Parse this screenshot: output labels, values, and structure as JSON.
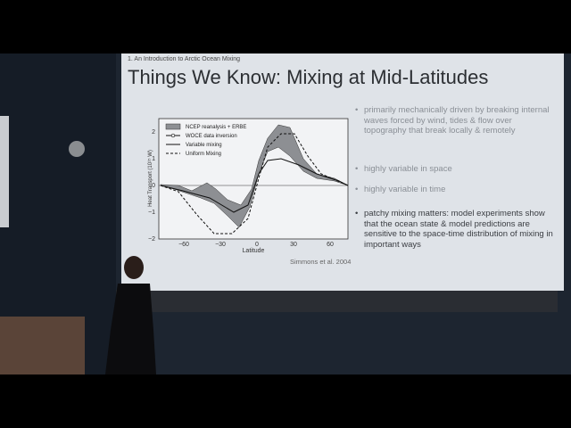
{
  "slide": {
    "section": "1. An Introduction to Arctic Ocean Mixing",
    "title": "Things We Know: Mixing at Mid-Latitudes",
    "figure": {
      "legend": [
        "NCEP reanalysis + ERBE",
        "WOCE data inversion",
        "Variable mixing",
        "Uniform Mixing"
      ],
      "y_label": "Heat Transport (10¹⁵ W)",
      "x_label": "Latitude",
      "y_ticks": [
        "2",
        "1",
        "0",
        "−1",
        "−2"
      ],
      "x_ticks": [
        "−60",
        "−30",
        "0",
        "30",
        "60"
      ]
    },
    "citation": "Simmons et al. 2004",
    "bullets": [
      "primarily mechanically driven by breaking internal waves forced by wind, tides & flow over topography that break locally & remotely",
      "highly variable in space",
      "highly variable in time",
      "patchy mixing matters: model experiments show that the ocean state & model predictions are sensitive to the space-time distribution of mixing in important ways"
    ]
  }
}
